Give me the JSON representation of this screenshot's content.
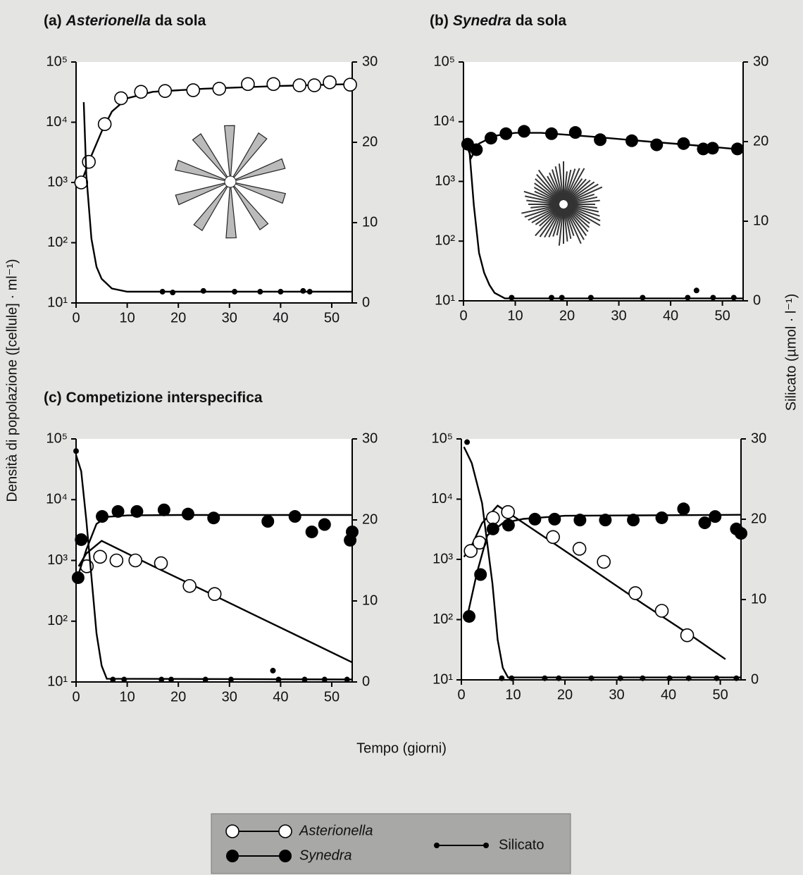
{
  "figure": {
    "xlabel": "Tempo (giorni)",
    "ylabel": "Densità di popolazione ([cellule] · ml⁻¹)",
    "y2label": "Silicato (µmol · l⁻¹)"
  },
  "chart_data": [
    {
      "type": "line",
      "title": [
        "(a)",
        "Asterionella",
        "da sola"
      ],
      "xlim": [
        0,
        54
      ],
      "xticks": [
        0,
        10,
        20,
        30,
        40,
        50
      ],
      "yscale": "log",
      "ylim": [
        10,
        100000
      ],
      "yticks": [
        {
          "value": 10,
          "label": "10¹"
        },
        {
          "value": 100,
          "label": "10²"
        },
        {
          "value": 1000,
          "label": "10³"
        },
        {
          "value": 10000,
          "label": "10⁴"
        },
        {
          "value": 100000,
          "label": "10⁵"
        }
      ],
      "y2lim": [
        0,
        30
      ],
      "y2ticks": [
        0,
        10,
        20,
        30
      ],
      "series": [
        {
          "name": "Asterionella",
          "marker": "open",
          "color": "#000000",
          "axis": "y",
          "x": [
            1,
            2.5,
            5.6,
            8.8,
            12.7,
            17.4,
            22.9,
            28,
            33.6,
            38.6,
            43.7,
            46.6,
            49.6,
            53.6
          ],
          "values": [
            1000,
            2200,
            9300,
            25000,
            32000,
            33000,
            34000,
            36000,
            43000,
            43000,
            41000,
            41000,
            46000,
            42000
          ],
          "curve": {
            "x": [
              1,
              3,
              5,
              7,
              10,
              15,
              25,
              40,
              54
            ],
            "values": [
              1000,
              2800,
              7000,
              15000,
              25000,
              32000,
              36000,
              40000,
              43000
            ]
          }
        },
        {
          "name": "Silicato",
          "marker": "dot",
          "color": "#000000",
          "axis": "y2",
          "x": [
            16.9,
            18.9,
            24.9,
            31,
            36,
            40,
            44.4,
            45.7
          ],
          "values": [
            1.4,
            1.3,
            1.5,
            1.4,
            1.4,
            1.4,
            1.5,
            1.4
          ],
          "curve": {
            "x": [
              1.5,
              2,
              3,
              4,
              5,
              7,
              10,
              54
            ],
            "values": [
              25,
              16,
              8,
              4.5,
              3,
              1.8,
              1.4,
              1.4
            ]
          }
        }
      ]
    },
    {
      "type": "line",
      "title": [
        "(b)",
        "Synedra",
        "da sola"
      ],
      "xlim": [
        0,
        54
      ],
      "xticks": [
        0,
        10,
        20,
        30,
        40,
        50
      ],
      "yscale": "log",
      "ylim": [
        10,
        100000
      ],
      "yticks": [
        {
          "value": 10,
          "label": "10¹"
        },
        {
          "value": 100,
          "label": "10²"
        },
        {
          "value": 1000,
          "label": "10³"
        },
        {
          "value": 10000,
          "label": "10⁴"
        },
        {
          "value": 100000,
          "label": "10⁵"
        }
      ],
      "y2lim": [
        0,
        30
      ],
      "y2ticks": [
        0,
        10,
        20,
        30
      ],
      "series": [
        {
          "name": "Synedra",
          "marker": "filled",
          "color": "#000000",
          "axis": "y",
          "x": [
            0.8,
            2.5,
            5.3,
            8.2,
            11.7,
            17,
            21.6,
            26.4,
            32.5,
            37.3,
            42.5,
            46.3,
            48.1,
            52.9
          ],
          "values": [
            4200,
            3400,
            5300,
            6300,
            6900,
            6300,
            6600,
            5000,
            4800,
            4100,
            4300,
            3500,
            3600,
            3500
          ],
          "curve": {
            "x": [
              0.5,
              1.5,
              3,
              6,
              10,
              15,
              25,
              35,
              45,
              54
            ],
            "values": [
              4200,
              2500,
              4300,
              5800,
              6500,
              6500,
              5600,
              4700,
              4000,
              3400
            ]
          }
        },
        {
          "name": "Silicato",
          "marker": "dot",
          "color": "#000000",
          "axis": "y2",
          "x": [
            9.3,
            17,
            19,
            24.6,
            34.6,
            43.3,
            45,
            48.2,
            52.2
          ],
          "values": [
            0.4,
            0.4,
            0.4,
            0.4,
            0.4,
            0.4,
            1.3,
            0.4,
            0.4
          ],
          "curve": {
            "x": [
              1,
              2,
              3,
              4,
              5,
              6,
              8,
              54
            ],
            "values": [
              20,
              12,
              6,
              3.5,
              2,
              1,
              0.3,
              0.3
            ]
          }
        }
      ]
    },
    {
      "type": "line",
      "title": [
        "(c)",
        "Competizione interspecifica"
      ],
      "xlim": [
        0,
        54
      ],
      "xticks": [
        0,
        10,
        20,
        30,
        40,
        50
      ],
      "yscale": "log",
      "ylim": [
        10,
        100000
      ],
      "yticks": [
        {
          "value": 10,
          "label": "10¹"
        },
        {
          "value": 100,
          "label": "10²"
        },
        {
          "value": 1000,
          "label": "10³"
        },
        {
          "value": 10000,
          "label": "10⁴"
        },
        {
          "value": 100000,
          "label": "10⁵"
        }
      ],
      "y2lim": [
        0,
        30
      ],
      "y2ticks": [
        0,
        10,
        20,
        30
      ],
      "series": [
        {
          "name": "Asterionella",
          "marker": "open",
          "color": "#000000",
          "axis": "y",
          "x": [
            2.1,
            4.7,
            7.9,
            11.6,
            16.6,
            22.2,
            27.1
          ],
          "values": [
            800,
            1150,
            1000,
            1000,
            900,
            380,
            280
          ],
          "curve": {
            "x": [
              0.5,
              2,
              5,
              15,
              25,
              35,
              45,
              54
            ],
            "values": [
              800,
              1300,
              2100,
              810,
              320,
              125,
              49,
              21
            ]
          }
        },
        {
          "name": "Synedra",
          "marker": "filled",
          "color": "#000000",
          "axis": "y",
          "x": [
            0.4,
            1,
            5.1,
            8.2,
            11.9,
            17.2,
            21.9,
            26.9,
            37.5,
            42.8,
            46.1,
            48.6,
            53.6,
            54
          ],
          "values": [
            520,
            2200,
            5300,
            6400,
            6400,
            6800,
            5800,
            5000,
            4400,
            5300,
            2950,
            3900,
            2150,
            2950
          ],
          "curve": {
            "x": [
              0.5,
              2,
              4,
              6,
              10,
              20,
              54
            ],
            "values": [
              600,
              1500,
              4000,
              5200,
              5500,
              5600,
              5600
            ]
          }
        },
        {
          "name": "Silicato",
          "marker": "dot",
          "color": "#000000",
          "axis": "y2",
          "x": [
            0,
            7.2,
            9.4,
            16.7,
            18.6,
            25.3,
            30.3,
            38.5,
            39.6,
            44.7,
            48.6,
            53
          ],
          "values": [
            28.5,
            0.3,
            0.3,
            0.3,
            0.3,
            0.3,
            0.3,
            1.4,
            0.3,
            0.3,
            0.3,
            0.3
          ],
          "curve": {
            "x": [
              0,
              1,
              2,
              3,
              4,
              5,
              6,
              54
            ],
            "values": [
              28,
              26,
              20,
              13,
              6,
              2,
              0.4,
              0.3
            ]
          }
        }
      ]
    },
    {
      "type": "line",
      "xlim": [
        0,
        54
      ],
      "xticks": [
        0,
        10,
        20,
        30,
        40,
        50
      ],
      "yscale": "log",
      "ylim": [
        10,
        100000
      ],
      "yticks": [
        {
          "value": 10,
          "label": "10¹"
        },
        {
          "value": 100,
          "label": "10²"
        },
        {
          "value": 1000,
          "label": "10³"
        },
        {
          "value": 10000,
          "label": "10⁴"
        },
        {
          "value": 100000,
          "label": "10⁵"
        }
      ],
      "y2lim": [
        0,
        30
      ],
      "y2ticks": [
        0,
        10,
        20,
        30
      ],
      "series": [
        {
          "name": "Asterionella",
          "marker": "open",
          "color": "#000000",
          "axis": "y",
          "x": [
            1.8,
            3.5,
            6.1,
            9,
            17.7,
            22.8,
            27.5,
            33.6,
            38.7,
            43.6
          ],
          "values": [
            1380,
            1900,
            4900,
            6100,
            2350,
            1500,
            910,
            275,
            140,
            55
          ],
          "curve": {
            "x": [
              0.5,
              2,
              4,
              7,
              15,
              25,
              35,
              45,
              51
            ],
            "values": [
              1100,
              1700,
              4000,
              7800,
              2700,
              710,
              185,
              50,
              22
            ]
          }
        },
        {
          "name": "Synedra",
          "marker": "filled",
          "color": "#000000",
          "axis": "y",
          "x": [
            1.5,
            3.7,
            6.1,
            9.1,
            14.2,
            18,
            22.9,
            27.8,
            33.2,
            38.7,
            42.9,
            47,
            49,
            53.1,
            54
          ],
          "values": [
            113,
            560,
            3200,
            3700,
            4650,
            4650,
            4500,
            4500,
            4500,
            4900,
            6900,
            4050,
            5150,
            3200,
            2700
          ],
          "curve": {
            "x": [
              1,
              3,
              5,
              8,
              12,
              20,
              54
            ],
            "values": [
              100,
              600,
              2500,
              4000,
              4700,
              5300,
              5500
            ]
          }
        },
        {
          "name": "Silicato",
          "marker": "dot",
          "color": "#000000",
          "axis": "y2",
          "x": [
            1.1,
            7.8,
            9.7,
            16.1,
            18.8,
            25.1,
            30.7,
            35,
            40.2,
            43.9,
            49.3,
            53.1
          ],
          "values": [
            29.6,
            0.2,
            0.2,
            0.2,
            0.2,
            0.2,
            0.2,
            0.2,
            0.2,
            0.2,
            0.2,
            0.2
          ],
          "curve": {
            "x": [
              0.5,
              2,
              4,
              6,
              7,
              8,
              9,
              54
            ],
            "values": [
              29,
              27,
              22,
              12,
              5,
              1.5,
              0.3,
              0.3
            ]
          }
        }
      ]
    }
  ]
}
